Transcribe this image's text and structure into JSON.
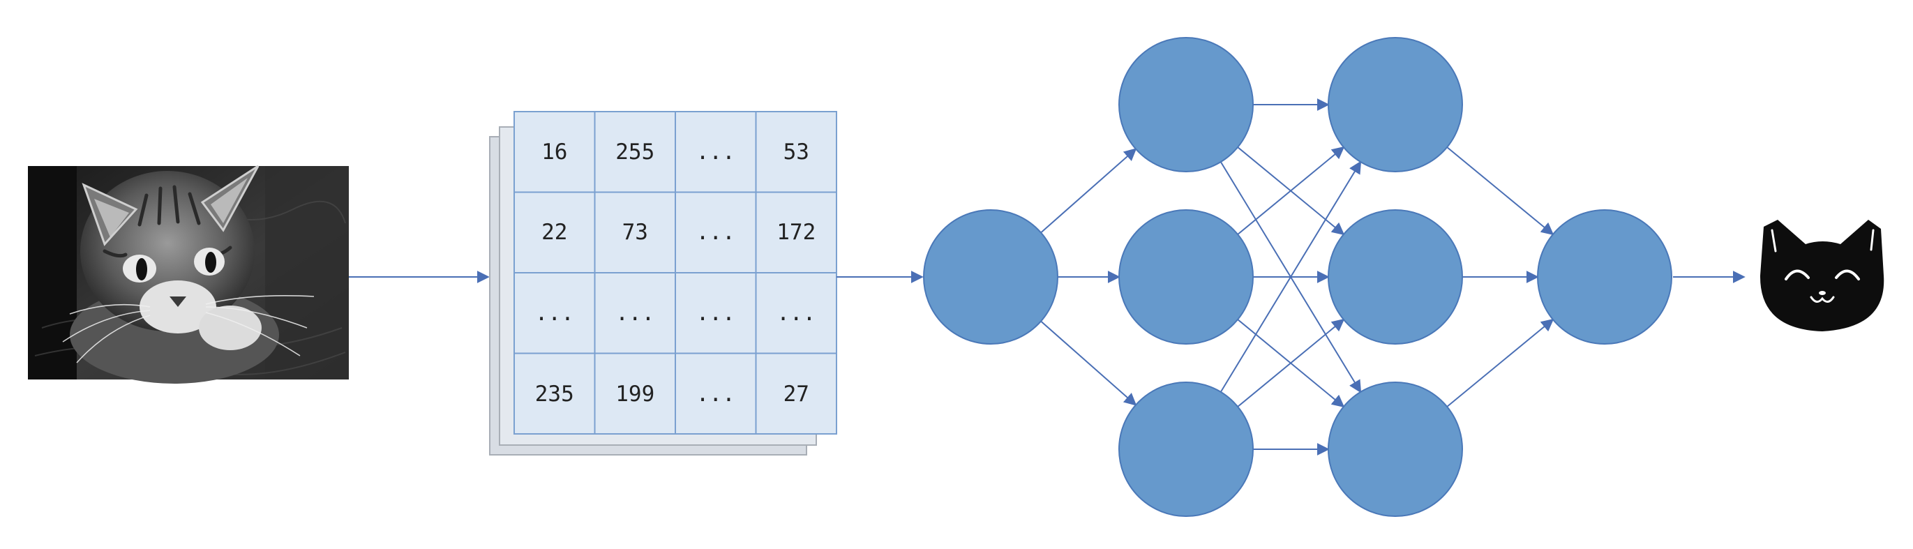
{
  "colors": {
    "arrow": "#4a6fb5",
    "neuron_fill": "#6699cc",
    "neuron_stroke": "#4a78b8",
    "matrix_fill": "#dde8f4",
    "matrix_stroke": "#7aa0d0",
    "matrix_back": "#d8dde4",
    "matrix_back_stroke": "#a8aeb6",
    "cat_icon": "#0d0d0d"
  },
  "input_image": {
    "icon": "cat-photo-grayscale"
  },
  "pixel_matrix": {
    "rows": [
      [
        "16",
        "255",
        "...",
        "53"
      ],
      [
        "22",
        "73",
        "...",
        "172"
      ],
      [
        "...",
        "...",
        "...",
        "..."
      ],
      [
        "235",
        "199",
        "...",
        "27"
      ]
    ]
  },
  "network": {
    "layers": [
      1,
      3,
      3,
      1
    ]
  },
  "output": {
    "icon": "smiling-cat-face-icon"
  }
}
